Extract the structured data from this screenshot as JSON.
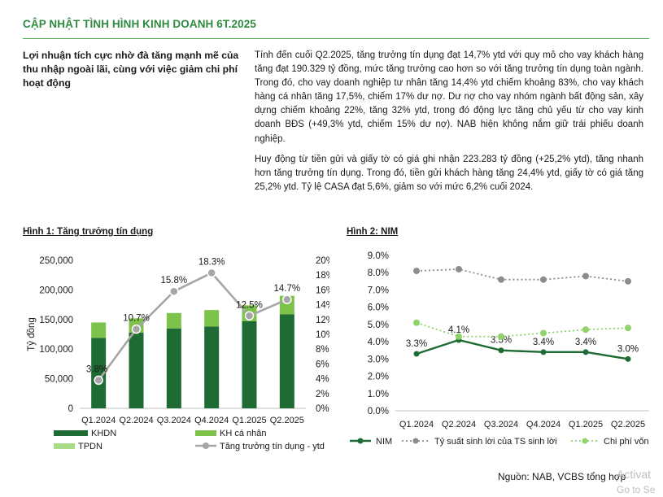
{
  "header": {
    "title": "CẬP NHẬT TÌNH HÌNH KINH DOANH 6T.2025"
  },
  "side_heading": "Lợi nhuận tích cực nhờ đà tăng mạnh mẽ của thu nhập ngoài lãi, cùng với việc giảm chi phí hoạt động",
  "paragraphs": [
    "Tính đến cuối Q2.2025, tăng trưởng tín dụng đạt 14,7% ytd với quy mô cho vay khách hàng tăng đạt 190.329 tỷ đồng, mức tăng trưởng cao hơn so với tăng trưởng tín dụng toàn ngành. Trong đó, cho vay doanh nghiệp tư nhân tăng 14,4% ytd chiếm khoảng 83%, cho vay khách hàng cá nhân tăng 17,5%, chiếm 17% dư nợ. Dư nợ cho vay nhóm ngành bất động sản, xây dựng chiếm khoảng 22%, tăng 32% ytd, trong đó động lực tăng chủ yếu từ cho vay kinh doanh BĐS (+49,3% ytd, chiếm 15% dư nợ). NAB hiện không nắm giữ trái phiếu doanh nghiệp.",
    "Huy động từ tiền gửi và giấy tờ có giá ghi nhận 223.283 tỷ đồng (+25,2% ytd), tăng nhanh hơn tăng trưởng tín dụng. Trong đó, tiền gửi khách hàng tăng 24,4% ytd, giấy tờ có giá tăng 25,2% ytd. Tỷ lệ CASA đạt 5,6%, giảm so với mức 6,2% cuối 2024."
  ],
  "figures": {
    "fig1_title": "Hình 1: Tăng trưởng tín dụng",
    "fig2_title": "Hình 2: NIM"
  },
  "source": "Nguồn: NAB, VCBS tổng hợp",
  "watermark": {
    "line1": "Activat",
    "line2": "Go to Se"
  },
  "chart_data": [
    {
      "type": "bar",
      "stacked": true,
      "categories": [
        "Q1.2024",
        "Q2.2024",
        "Q3.2024",
        "Q4.2024",
        "Q1.2025",
        "Q2.2025"
      ],
      "series": [
        {
          "name": "KHDN",
          "values": [
            119000,
            128000,
            135000,
            138000,
            147000,
            159000
          ],
          "color": "#1e6b33"
        },
        {
          "name": "KH cá nhân",
          "values": [
            26000,
            24000,
            26000,
            28000,
            27000,
            31000
          ],
          "color": "#7dc24a"
        },
        {
          "name": "TPDN",
          "values": [
            0,
            0,
            0,
            0,
            0,
            0
          ],
          "color": "#a8dc86"
        }
      ],
      "line_series": {
        "name": "Tăng trưởng tín dụng - ytd",
        "values": [
          3.8,
          10.7,
          15.8,
          18.3,
          12.5,
          14.7
        ],
        "labels": [
          "3.8%",
          "10.7%",
          "15.8%",
          "18.3%",
          "12.5%",
          "14.7%"
        ],
        "color": "#a6a6a6"
      },
      "ylabel": "Tỷ đồng",
      "ylim": [
        0,
        250000
      ],
      "y_ticks": [
        "0",
        "50,000",
        "100,000",
        "150,000",
        "200,000",
        "250,000"
      ],
      "y2lim": [
        0,
        20
      ],
      "y2_ticks": [
        "0%",
        "2%",
        "4%",
        "6%",
        "8%",
        "10%",
        "12%",
        "14%",
        "16%",
        "18%",
        "20%"
      ],
      "legend": "bottom"
    },
    {
      "type": "line",
      "categories": [
        "Q1.2024",
        "Q2.2024",
        "Q3.2024",
        "Q4.2024",
        "Q1.2025",
        "Q2.2025"
      ],
      "series": [
        {
          "name": "NIM",
          "values": [
            3.3,
            4.1,
            3.5,
            3.4,
            3.4,
            3.0
          ],
          "labels": [
            "3.3%",
            "4.1%",
            "3.5%",
            "3.4%",
            "3.4%",
            "3.0%"
          ],
          "color": "#1e6b33",
          "style": "solid"
        },
        {
          "name": "Tỷ suất sinh lời của TS sinh lời",
          "values": [
            8.1,
            8.2,
            7.6,
            7.6,
            7.8,
            7.5
          ],
          "color": "#8c8c8c",
          "style": "dotted"
        },
        {
          "name": "Chi phí vốn",
          "values": [
            5.1,
            4.3,
            4.3,
            4.5,
            4.7,
            4.8
          ],
          "color": "#8fd36a",
          "style": "dotted"
        }
      ],
      "ylim": [
        0,
        9
      ],
      "y_ticks": [
        "0.0%",
        "1.0%",
        "2.0%",
        "3.0%",
        "4.0%",
        "5.0%",
        "6.0%",
        "7.0%",
        "8.0%",
        "9.0%"
      ],
      "legend_labels": [
        "NIM",
        "Tỷ suất sinh lời của TS sinh lời",
        "Chi phí vốn"
      ],
      "legend": "bottom"
    }
  ]
}
